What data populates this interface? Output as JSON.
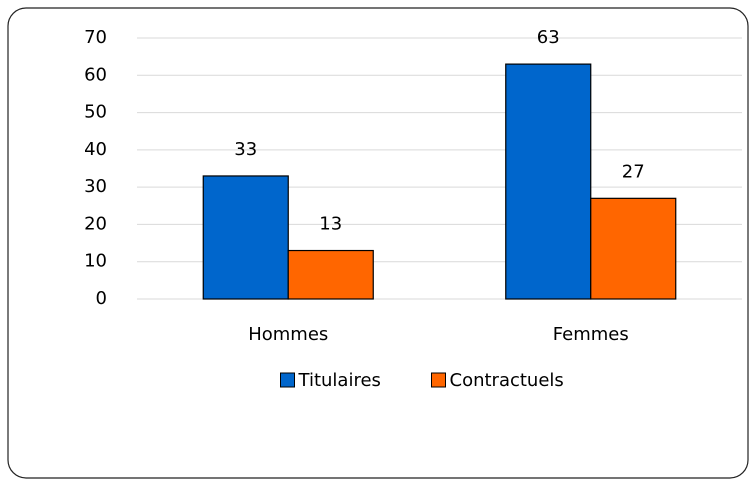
{
  "chart_data": {
    "type": "bar",
    "categories": [
      "Hommes",
      "Femmes"
    ],
    "series": [
      {
        "name": "Titulaires",
        "color": "#0066cc",
        "values": [
          33,
          63
        ]
      },
      {
        "name": "Contractuels",
        "color": "#ff6600",
        "values": [
          13,
          27
        ]
      }
    ],
    "ylim": [
      0,
      70
    ],
    "yticks": [
      0,
      10,
      20,
      30,
      40,
      50,
      60,
      70
    ],
    "grid": true,
    "legend": "bottom"
  }
}
